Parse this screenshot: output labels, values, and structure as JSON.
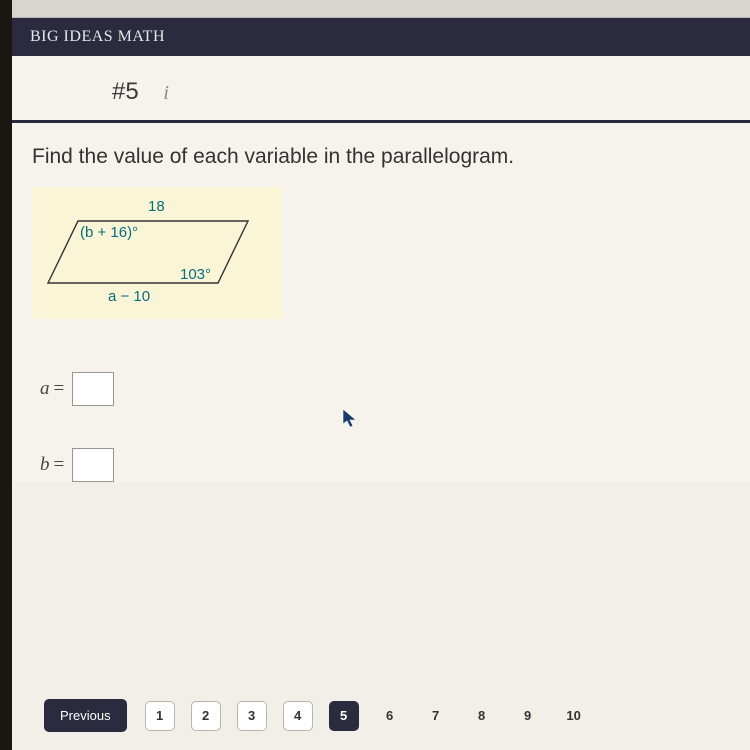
{
  "brand": "BIG IDEAS MATH",
  "question": {
    "number_label": "#5",
    "prompt": "Find the value of each variable in the parallelogram."
  },
  "figure": {
    "type": "parallelogram",
    "top_side_label": "18",
    "top_left_angle_label": "(b + 16)°",
    "bottom_right_angle_label": "103°",
    "bottom_side_label": "a − 10",
    "background_color": "#fbf5d8",
    "label_color": "#0a6d7a",
    "stroke_color": "#333333"
  },
  "answers": [
    {
      "var": "a",
      "value": ""
    },
    {
      "var": "b",
      "value": ""
    }
  ],
  "nav": {
    "previous_label": "Previous",
    "pages": [
      {
        "n": "1",
        "boxed": true,
        "active": false
      },
      {
        "n": "2",
        "boxed": true,
        "active": false
      },
      {
        "n": "3",
        "boxed": true,
        "active": false
      },
      {
        "n": "4",
        "boxed": true,
        "active": false
      },
      {
        "n": "5",
        "boxed": true,
        "active": true
      },
      {
        "n": "6",
        "boxed": false,
        "active": false
      },
      {
        "n": "7",
        "boxed": false,
        "active": false
      },
      {
        "n": "8",
        "boxed": false,
        "active": false
      },
      {
        "n": "9",
        "boxed": false,
        "active": false
      },
      {
        "n": "10",
        "boxed": false,
        "active": false
      }
    ]
  },
  "colors": {
    "brand_bg": "#2b2a3e",
    "page_bg": "#f6f3ed",
    "highlight_bg": "#fbf5d8"
  }
}
